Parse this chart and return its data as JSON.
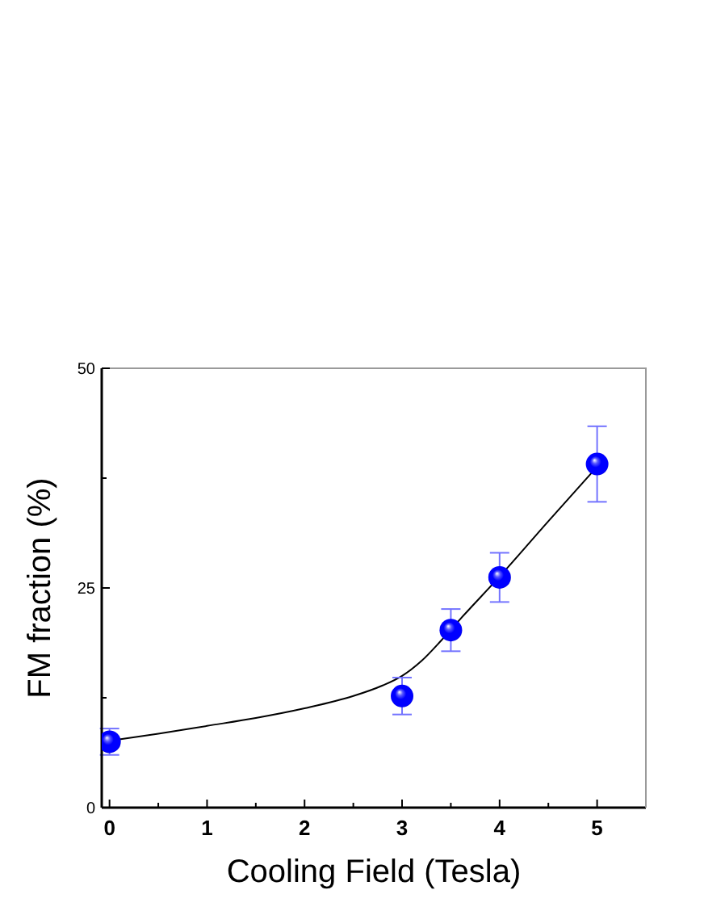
{
  "chart_data": {
    "type": "scatter",
    "xlabel": "Cooling Field (Tesla)",
    "ylabel": "FM fraction (%)",
    "xlim": [
      -0.08,
      5.5
    ],
    "xticks": [
      0,
      {
        "value": 0.5,
        "label": null
      },
      1,
      {
        "value": 1.5,
        "label": null
      },
      2,
      {
        "value": 2.5,
        "label": null
      },
      3,
      {
        "value": 3.5,
        "label": null
      },
      4,
      {
        "value": 4.5,
        "label": null
      },
      5
    ],
    "ylim": [
      0,
      50
    ],
    "yticks": [
      0,
      {
        "value": 12.5,
        "label": null
      },
      25,
      {
        "value": 37.5,
        "label": null
      },
      50
    ],
    "series": [
      {
        "color": "#0000ff",
        "marker": "circle",
        "x": [
          0,
          3,
          3.5,
          4,
          5
        ],
        "values": [
          7.5,
          12.7,
          20.2,
          26.2,
          39.1
        ],
        "errors": [
          1.5,
          2.1,
          2.4,
          2.8,
          4.3
        ]
      },
      {
        "type": "line",
        "color": "#000000",
        "marker": "none",
        "x": [
          0,
          0.5,
          1,
          1.5,
          2,
          2.5,
          2.8,
          3,
          3.2,
          3.4,
          3.6,
          4,
          4.5,
          5
        ],
        "values": [
          7.6,
          8.4,
          9.3,
          10.2,
          11.3,
          12.7,
          13.9,
          15.0,
          16.7,
          19.0,
          21.5,
          26.3,
          32.6,
          38.8
        ]
      }
    ]
  }
}
